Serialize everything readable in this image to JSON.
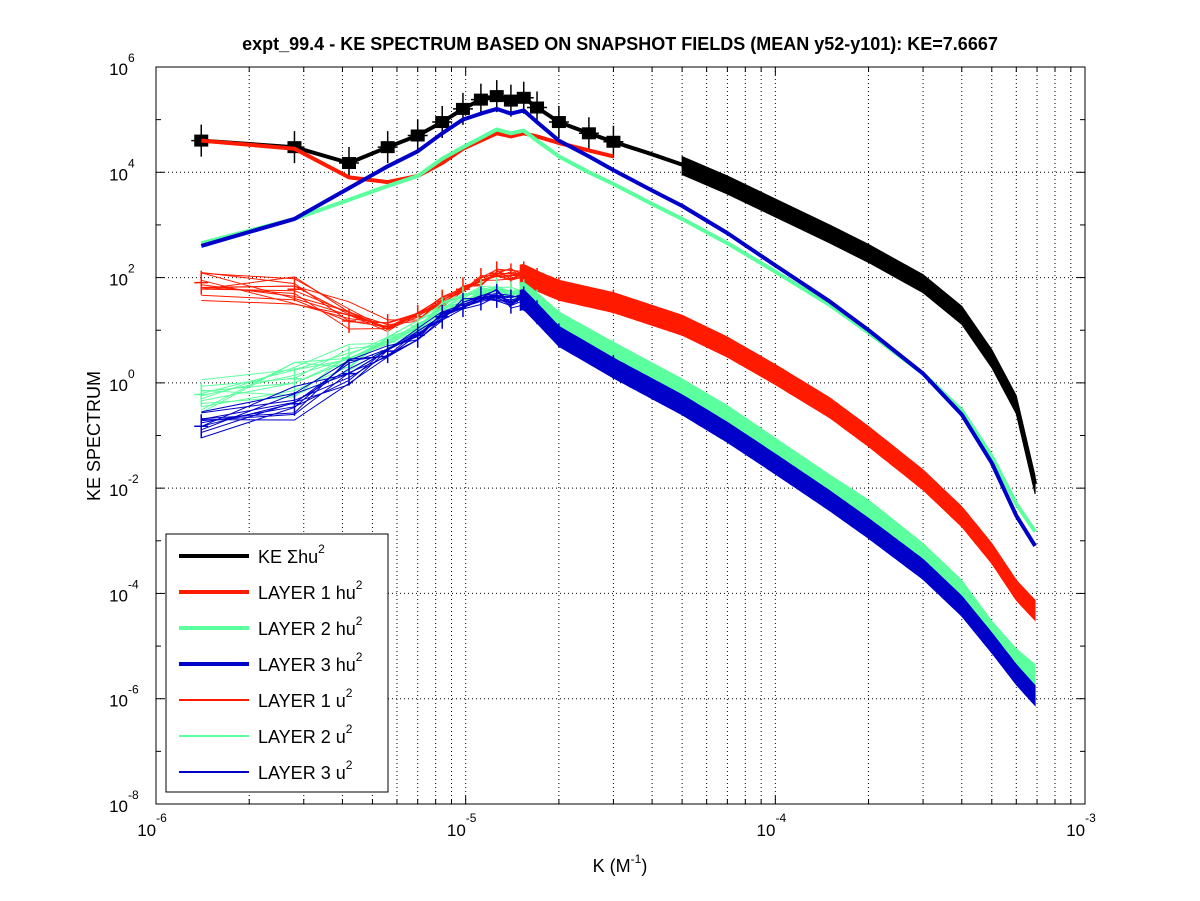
{
  "chart_data": {
    "type": "line",
    "title": "expt_99.4 - KE SPECTRUM BASED ON SNAPSHOT FIELDS (MEAN y52-y101): KE=7.6667",
    "xlabel": "K  (M",
    "xlabel_sup": "-1",
    "xlabel_close": ")",
    "ylabel": "KE SPECTRUM",
    "xscale": "log",
    "yscale": "log",
    "xlim": [
      1e-06,
      0.001
    ],
    "ylim": [
      1e-08,
      1000000.0
    ],
    "grid": true,
    "legend_position": "bottom-left",
    "x_ticks": [
      {
        "base": "10",
        "exp": "-6",
        "value": 1e-06
      },
      {
        "base": "10",
        "exp": "-5",
        "value": 1e-05
      },
      {
        "base": "10",
        "exp": "-4",
        "value": 0.0001
      },
      {
        "base": "10",
        "exp": "-3",
        "value": 0.001
      }
    ],
    "y_ticks": [
      {
        "base": "10",
        "exp": "6",
        "value": 1000000.0
      },
      {
        "base": "10",
        "exp": "4",
        "value": 10000.0
      },
      {
        "base": "10",
        "exp": "2",
        "value": 100.0
      },
      {
        "base": "10",
        "exp": "0",
        "value": 1.0
      },
      {
        "base": "10",
        "exp": "-2",
        "value": 0.01
      },
      {
        "base": "10",
        "exp": "-4",
        "value": 0.0001
      },
      {
        "base": "10",
        "exp": "-6",
        "value": 1e-06
      },
      {
        "base": "10",
        "exp": "-8",
        "value": 1e-08
      }
    ],
    "series": [
      {
        "name": "KE Σhu²",
        "label_main": "KE Σhu",
        "label_sup": "2",
        "color": "#000000",
        "style": "thick",
        "markers": true,
        "x": [
          1.4e-06,
          2.8e-06,
          4.2e-06,
          5.6e-06,
          7e-06,
          8.4e-06,
          9.8e-06,
          1.12e-05,
          1.26e-05,
          1.4e-05,
          1.54e-05,
          1.7e-05,
          2e-05,
          2.5e-05,
          3e-05,
          4e-05,
          5e-05,
          7e-05,
          0.0001,
          0.00015,
          0.0002,
          0.0003,
          0.0004,
          0.0005,
          0.0006,
          0.00069
        ],
        "y": [
          40000,
          30000,
          15000,
          30000,
          50000,
          90000,
          160000,
          240000,
          280000,
          230000,
          260000,
          170000,
          90000,
          55000,
          38000,
          22000,
          14000,
          6000,
          2200,
          700,
          300,
          80,
          20,
          3,
          0.4,
          0.012
        ]
      },
      {
        "name": "LAYER 1 hu²",
        "label_main": "LAYER 1 hu",
        "label_sup": "2",
        "color": "#ff1a00",
        "style": "thick",
        "markers": false,
        "x": [
          1.4e-06,
          2.8e-06,
          4.2e-06,
          5.6e-06,
          7e-06,
          8.4e-06,
          9.8e-06,
          1.12e-05,
          1.26e-05,
          1.4e-05,
          1.54e-05,
          1.7e-05,
          2e-05,
          2.5e-05,
          3e-05
        ],
        "y": [
          40000,
          28000,
          8000,
          6500,
          8500,
          15000,
          28000,
          40000,
          55000,
          48000,
          55000,
          48000,
          36000,
          26000,
          20000
        ]
      },
      {
        "name": "LAYER 2 hu²",
        "label_main": "LAYER 2 hu",
        "label_sup": "2",
        "color": "#5cff9e",
        "style": "thick",
        "markers": false,
        "x": [
          1.4e-06,
          2.8e-06,
          4.2e-06,
          5.6e-06,
          7e-06,
          8.4e-06,
          9.8e-06,
          1.12e-05,
          1.26e-05,
          1.4e-05,
          1.54e-05,
          1.7e-05,
          2e-05,
          2.5e-05,
          3e-05,
          4e-05,
          5e-05,
          7e-05,
          0.0001,
          0.00015,
          0.0002,
          0.0003,
          0.0004,
          0.0005,
          0.0006,
          0.00069
        ],
        "y": [
          450,
          1300,
          3000,
          5500,
          8500,
          18000,
          30000,
          45000,
          65000,
          55000,
          62000,
          40000,
          20000,
          10000,
          6000,
          2500,
          1300,
          450,
          130,
          30,
          9,
          1.5,
          0.3,
          0.04,
          0.005,
          0.0015
        ]
      },
      {
        "name": "LAYER 3 hu²",
        "label_main": "LAYER 3 hu",
        "label_sup": "2",
        "color": "#0000c8",
        "style": "thick",
        "markers": false,
        "x": [
          1.4e-06,
          2.8e-06,
          4.2e-06,
          5.6e-06,
          7e-06,
          8.4e-06,
          9.8e-06,
          1.12e-05,
          1.26e-05,
          1.4e-05,
          1.54e-05,
          1.7e-05,
          2e-05,
          2.5e-05,
          3e-05,
          4e-05,
          5e-05,
          7e-05,
          0.0001,
          0.00015,
          0.0002,
          0.0003,
          0.0004,
          0.0005,
          0.0006,
          0.00069
        ],
        "y": [
          400,
          1300,
          5000,
          13000,
          25000,
          55000,
          100000,
          130000,
          160000,
          130000,
          150000,
          90000,
          40000,
          20000,
          11000,
          4500,
          2300,
          700,
          170,
          35,
          10,
          1.5,
          0.25,
          0.03,
          0.003,
          0.0008
        ]
      },
      {
        "name": "LAYER 1 u²",
        "label_main": "LAYER 1 u",
        "label_sup": "2",
        "color": "#ff1a00",
        "style": "thin",
        "markers": true,
        "x": [
          1.4e-06,
          2.8e-06,
          4.2e-06,
          5.6e-06,
          7e-06,
          8.4e-06,
          9.8e-06,
          1.12e-05,
          1.26e-05,
          1.4e-05,
          1.54e-05,
          1.7e-05,
          2e-05,
          3e-05,
          5e-05,
          7e-05,
          0.0001,
          0.00015,
          0.0002,
          0.0003,
          0.0004,
          0.0005,
          0.0006,
          0.00069
        ],
        "y": [
          80,
          60,
          15,
          12,
          18,
          35,
          60,
          90,
          120,
          110,
          120,
          90,
          60,
          35,
          13,
          5,
          1.5,
          0.35,
          0.1,
          0.015,
          0.003,
          0.0006,
          0.00012,
          5e-05
        ]
      },
      {
        "name": "LAYER 2 u²",
        "label_main": "LAYER 2 u",
        "label_sup": "2",
        "color": "#5cff9e",
        "style": "thin",
        "markers": true,
        "x": [
          1.4e-06,
          2.8e-06,
          4.2e-06,
          5.6e-06,
          7e-06,
          8.4e-06,
          9.8e-06,
          1.12e-05,
          1.26e-05,
          1.4e-05,
          1.54e-05,
          1.7e-05,
          2e-05,
          3e-05,
          5e-05,
          7e-05,
          0.0001,
          0.00015,
          0.0002,
          0.0003,
          0.0004,
          0.0005,
          0.0006,
          0.00069
        ],
        "y": [
          0.6,
          1.2,
          3,
          6,
          12,
          25,
          40,
          55,
          60,
          50,
          55,
          35,
          15,
          4,
          0.8,
          0.25,
          0.06,
          0.012,
          0.004,
          0.0006,
          0.00012,
          2e-05,
          6e-06,
          3e-06
        ]
      },
      {
        "name": "LAYER 3 u²",
        "label_main": "LAYER 3 u",
        "label_sup": "2",
        "color": "#0000c8",
        "style": "thin",
        "markers": true,
        "x": [
          1.4e-06,
          2.8e-06,
          4.2e-06,
          5.6e-06,
          7e-06,
          8.4e-06,
          9.8e-06,
          1.12e-05,
          1.26e-05,
          1.4e-05,
          1.54e-05,
          1.7e-05,
          2e-05,
          3e-05,
          5e-05,
          7e-05,
          0.0001,
          0.00015,
          0.0002,
          0.0003,
          0.0004,
          0.0005,
          0.0006,
          0.00069
        ],
        "y": [
          0.15,
          0.4,
          1.5,
          4,
          8,
          18,
          30,
          40,
          45,
          35,
          40,
          22,
          8,
          2,
          0.4,
          0.12,
          0.03,
          0.006,
          0.0018,
          0.0003,
          6e-05,
          1.2e-05,
          3e-06,
          1.2e-06
        ]
      }
    ]
  }
}
